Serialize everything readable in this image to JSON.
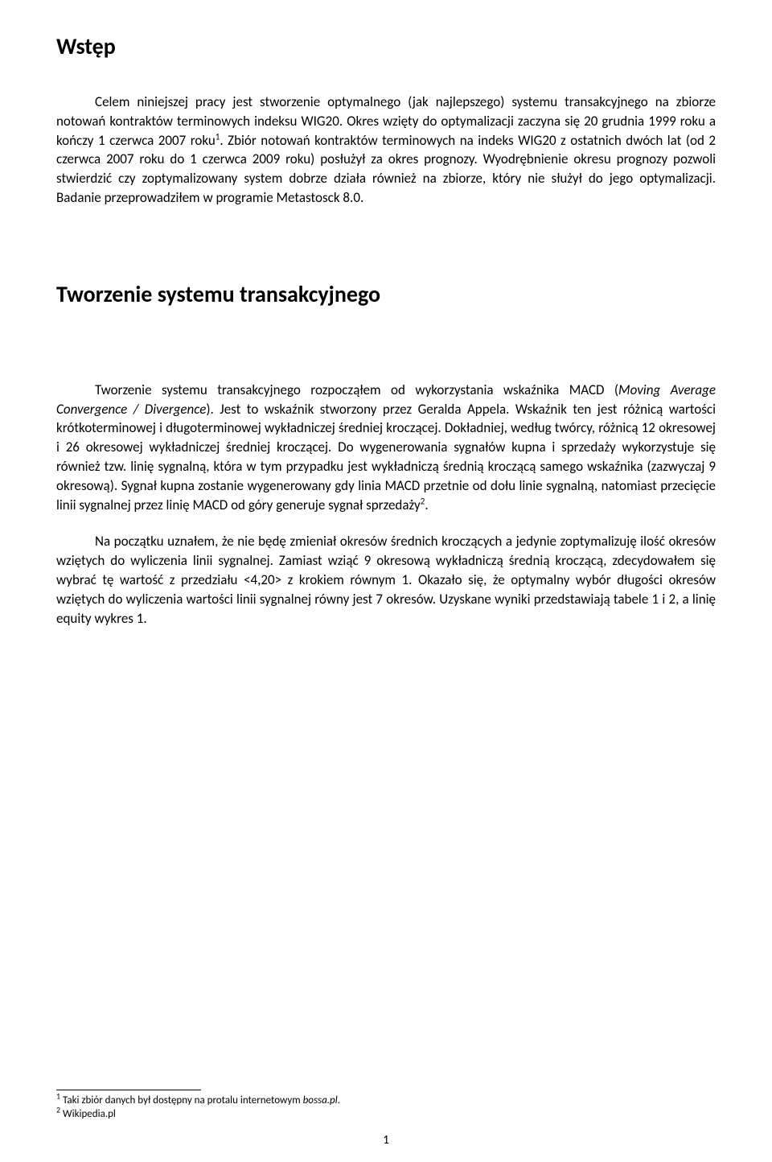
{
  "heading1": "Wstęp",
  "para1_part1": "Celem niniejszej pracy jest stworzenie optymalnego (jak najlepszego) systemu transakcyjnego na zbiorze notowań kontraktów terminowych indeksu WIG20. Okres wzięty do optymalizacji zaczyna się 20 grudnia 1999 roku a kończy 1 czerwca 2007 roku",
  "para1_sup1": "1",
  "para1_part2": ". Zbiór notowań kontraktów terminowych na indeks WIG20 z ostatnich dwóch lat (od 2 czerwca 2007 roku do 1 czerwca 2009 roku) posłużył za okres prognozy. Wyodrębnienie okresu prognozy pozwoli stwierdzić czy zoptymalizowany system dobrze działa również na zbiorze, który nie służył do jego optymalizacji. Badanie przeprowadziłem w programie Metastosck 8.0.",
  "section_title": "Tworzenie systemu transakcyjnego",
  "para2_part1": "Tworzenie systemu transakcyjnego rozpocząłem od wykorzystania wskaźnika MACD (",
  "para2_italic": "Moving Average Convergence / Divergence",
  "para2_part2": "). Jest to wskaźnik stworzony przez Geralda Appela. Wskaźnik ten jest różnicą wartości krótkoterminowej i długoterminowej wykładniczej średniej kroczącej. Dokładniej, według twórcy, różnicą 12 okresowej i 26 okresowej wykładniczej średniej kroczącej. Do wygenerowania sygnałów kupna i sprzedaży wykorzystuje się również tzw. linię sygnalną, która w tym przypadku jest wykładniczą średnią kroczącą samego wskaźnika (zazwyczaj 9 okresową). Sygnał kupna zostanie wygenerowany gdy linia MACD przetnie od dołu linie sygnalną, natomiast przecięcie linii sygnalnej przez linię MACD od góry generuje sygnał sprzedaży",
  "para2_sup": "2",
  "para2_part3": ".",
  "para3": "Na początku uznałem, że nie będę zmieniał okresów średnich kroczących a jedynie zoptymalizuję ilość okresów wziętych do wyliczenia linii sygnalnej. Zamiast wziąć 9 okresową wykładniczą średnią kroczącą, zdecydowałem się wybrać tę wartość z przedziału <4,20> z krokiem równym 1. Okazało się, że optymalny wybór długości okresów wziętych do wyliczenia wartości linii sygnalnej równy jest 7 okresów. Uzyskane wyniki przedstawiają tabele 1 i 2, a linię equity wykres 1.",
  "footnote1_sup": "1",
  "footnote1_text": " Taki zbiór danych był dostępny na protalu internetowym ",
  "footnote1_italic": "bossa.pl",
  "footnote1_end": ".",
  "footnote2_sup": "2",
  "footnote2_text": " Wikipedia.pl",
  "page_number": "1"
}
